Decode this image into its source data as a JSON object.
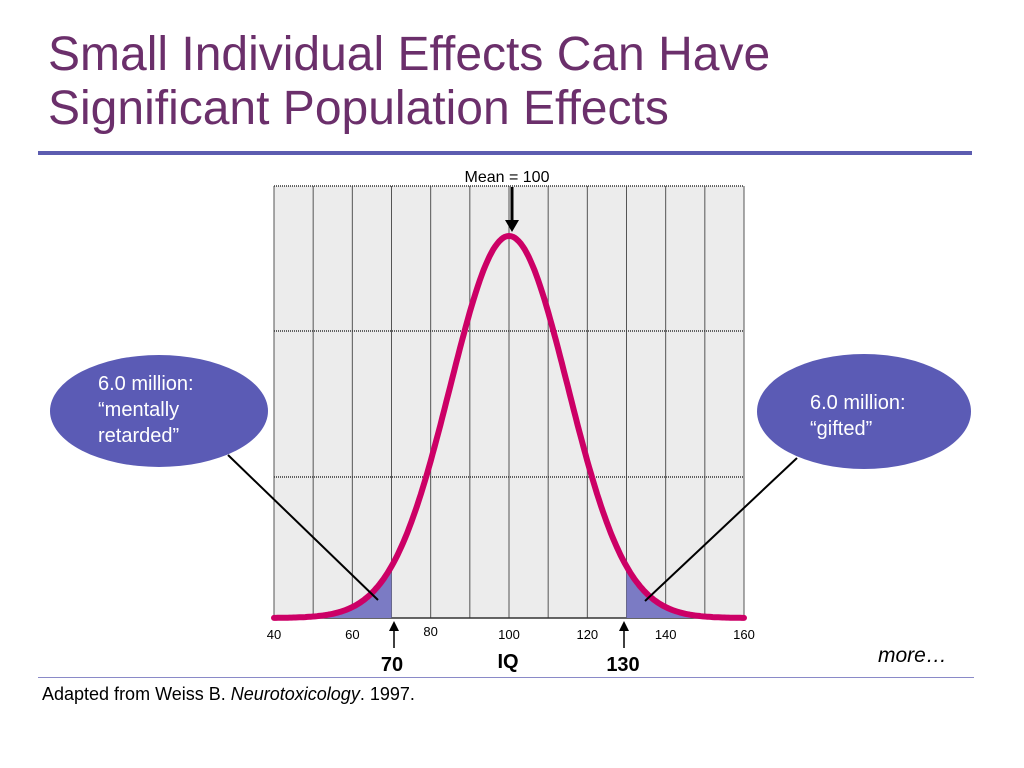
{
  "title": {
    "line1": "Small Individual Effects Can Have",
    "line2": "Significant Population Effects"
  },
  "chart_data": {
    "type": "area",
    "distribution": "normal",
    "mean": 100,
    "sd": 15,
    "xlim": [
      40,
      160
    ],
    "x_ticks": [
      40,
      60,
      80,
      100,
      120,
      140,
      160
    ],
    "xlabel": "IQ",
    "grid": true,
    "shaded_regions": [
      {
        "from": 40,
        "to": 70
      },
      {
        "from": 130,
        "to": 160
      }
    ],
    "annotations": {
      "mean_label": "Mean = 100",
      "low_marker": "70",
      "high_marker": "130"
    }
  },
  "callouts": {
    "left": {
      "line1": "6.0 million:",
      "line2": "“mentally",
      "line3": "retarded”"
    },
    "right": {
      "line1": "6.0 million:",
      "line2": "“gifted”"
    }
  },
  "more_label": "more…",
  "citation": {
    "prefix": "Adapted from Weiss B. ",
    "journal": "Neurotoxicology",
    "suffix": ". 1997."
  },
  "colors": {
    "title": "#6b2f6b",
    "rule": "#5c5cb0",
    "curve": "#cc0066",
    "shade": "#7b7bc4",
    "bubble": "#5b5bb5",
    "plot_bg": "#ececec"
  }
}
